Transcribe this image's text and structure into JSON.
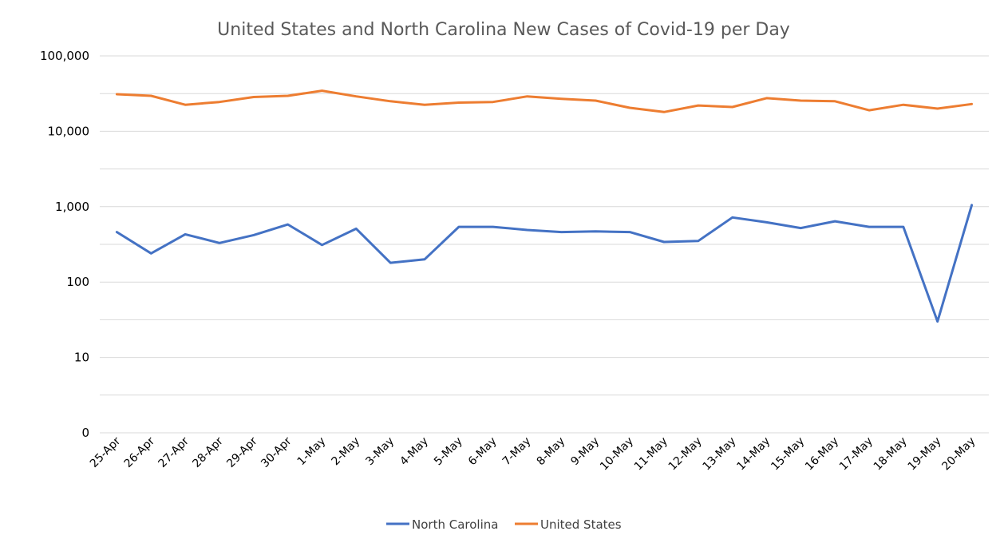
{
  "chart_data": {
    "type": "line",
    "title": "United States and North Carolina New Cases of Covid-19 per Day",
    "xlabel": "",
    "ylabel": "",
    "y_scale": "log",
    "ylim": [
      1,
      100000
    ],
    "y_tick_labels": [
      "0",
      "10",
      "100",
      "1,000",
      "10,000",
      "100,000"
    ],
    "y_tick_values": [
      1,
      10,
      100,
      1000,
      10000,
      100000
    ],
    "grid": "horizontal major and minor gridlines",
    "legend_position": "bottom",
    "categories": [
      "25-Apr",
      "26-Apr",
      "27-Apr",
      "28-Apr",
      "29-Apr",
      "30-Apr",
      "1-May",
      "2-May",
      "3-May",
      "4-May",
      "5-May",
      "6-May",
      "7-May",
      "8-May",
      "9-May",
      "10-May",
      "11-May",
      "12-May",
      "13-May",
      "14-May",
      "15-May",
      "16-May",
      "17-May",
      "18-May",
      "19-May",
      "20-May"
    ],
    "series": [
      {
        "name": "North Carolina",
        "color": "#4472c4",
        "values": [
          460,
          240,
          430,
          330,
          420,
          580,
          310,
          510,
          180,
          200,
          540,
          540,
          490,
          460,
          470,
          460,
          340,
          350,
          720,
          620,
          520,
          640,
          540,
          540,
          30,
          1050
        ]
      },
      {
        "name": "United States",
        "color": "#ed7d31",
        "values": [
          31000,
          29500,
          22500,
          24500,
          28500,
          29500,
          34500,
          29000,
          25000,
          22500,
          24000,
          24500,
          29000,
          27000,
          25500,
          20500,
          18000,
          22000,
          21000,
          27500,
          25500,
          25000,
          19000,
          22500,
          20000,
          23000
        ]
      }
    ]
  }
}
